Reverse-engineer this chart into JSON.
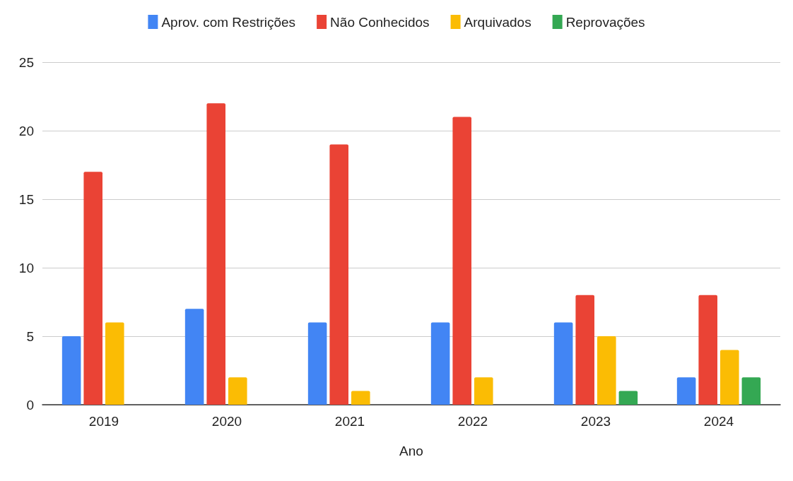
{
  "chart_data": {
    "type": "bar",
    "xlabel": "Ano",
    "categories": [
      "2019",
      "2020",
      "2021",
      "2022",
      "2023",
      "2024"
    ],
    "series": [
      {
        "name": "Aprov. com Restrições",
        "color": "#4285f4",
        "values": [
          5,
          7,
          6,
          6,
          6,
          2
        ]
      },
      {
        "name": "Não Conhecidos",
        "color": "#ea4335",
        "values": [
          17,
          22,
          19,
          21,
          8,
          8
        ]
      },
      {
        "name": "Arquivados",
        "color": "#fbbc04",
        "values": [
          6,
          2,
          1,
          2,
          5,
          4
        ]
      },
      {
        "name": "Reprovações",
        "color": "#34a853",
        "values": [
          null,
          null,
          null,
          null,
          1,
          2
        ]
      }
    ],
    "ylim": [
      0,
      25
    ],
    "yticks": [
      0,
      5,
      10,
      15,
      20,
      25
    ],
    "grid": "y",
    "legend": "top"
  }
}
